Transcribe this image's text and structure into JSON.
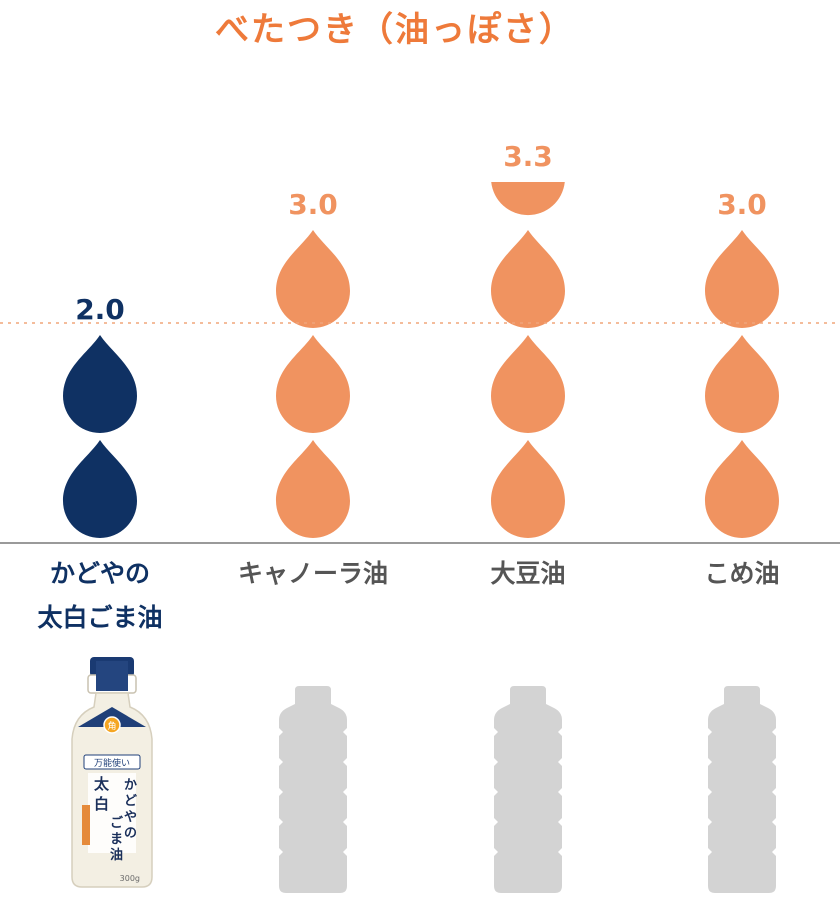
{
  "colors": {
    "highlight": "#0f3163",
    "compare": "#f09360",
    "title": "#ee7a3a",
    "label_gray": "#555555",
    "bottle_gray": "#d3d3d3",
    "baseline": "#9a9a9a",
    "dotted": "#f0a57a"
  },
  "chart_data": {
    "type": "bar",
    "title": "べたつき（油っぽさ）",
    "categories": [
      "かどやの\n太白ごま油",
      "キャノーラ油",
      "大豆油",
      "こめ油"
    ],
    "values": [
      2.0,
      3.0,
      3.3,
      3.0
    ],
    "value_labels": [
      "2.0",
      "3.0",
      "3.3",
      "3.0"
    ],
    "unit_mark": "drop",
    "reference_line": 2.0,
    "highlight_index": 0
  },
  "product": {
    "icon": "sesame-oil-bottle-icon",
    "label_badge": "万能使い",
    "label_name": "かどやの\n太白ごま油",
    "label_logo": "角",
    "volume": "300g"
  },
  "placeholders": {
    "icon": "generic-bottle-icon"
  }
}
